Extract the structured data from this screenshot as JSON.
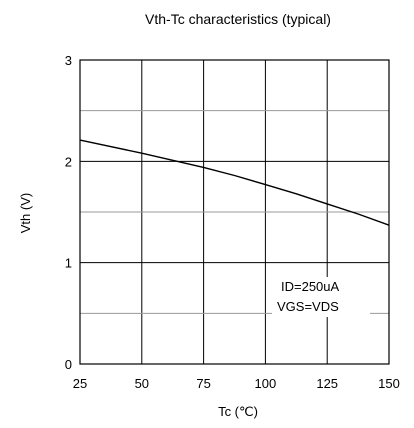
{
  "chart_data": {
    "type": "line",
    "title": "Vth-Tc characteristics (typical)",
    "xlabel": "Tc (℃)",
    "ylabel": "Vth (V)",
    "xlim": [
      25,
      150
    ],
    "ylim": [
      0,
      3
    ],
    "x_ticks": [
      "25",
      "50",
      "75",
      "100",
      "125",
      "150"
    ],
    "y_ticks": [
      "0",
      "1",
      "2",
      "3"
    ],
    "grid": true,
    "series": [
      {
        "x": [
          25,
          50,
          62.5,
          75,
          87.5,
          100,
          112.5,
          125,
          137.5,
          150
        ],
        "y": [
          2.21,
          2.08,
          2.01,
          1.94,
          1.86,
          1.77,
          1.68,
          1.58,
          1.48,
          1.37
        ]
      }
    ],
    "annotations": [
      "ID=250uA",
      "VGS=VDS"
    ]
  }
}
